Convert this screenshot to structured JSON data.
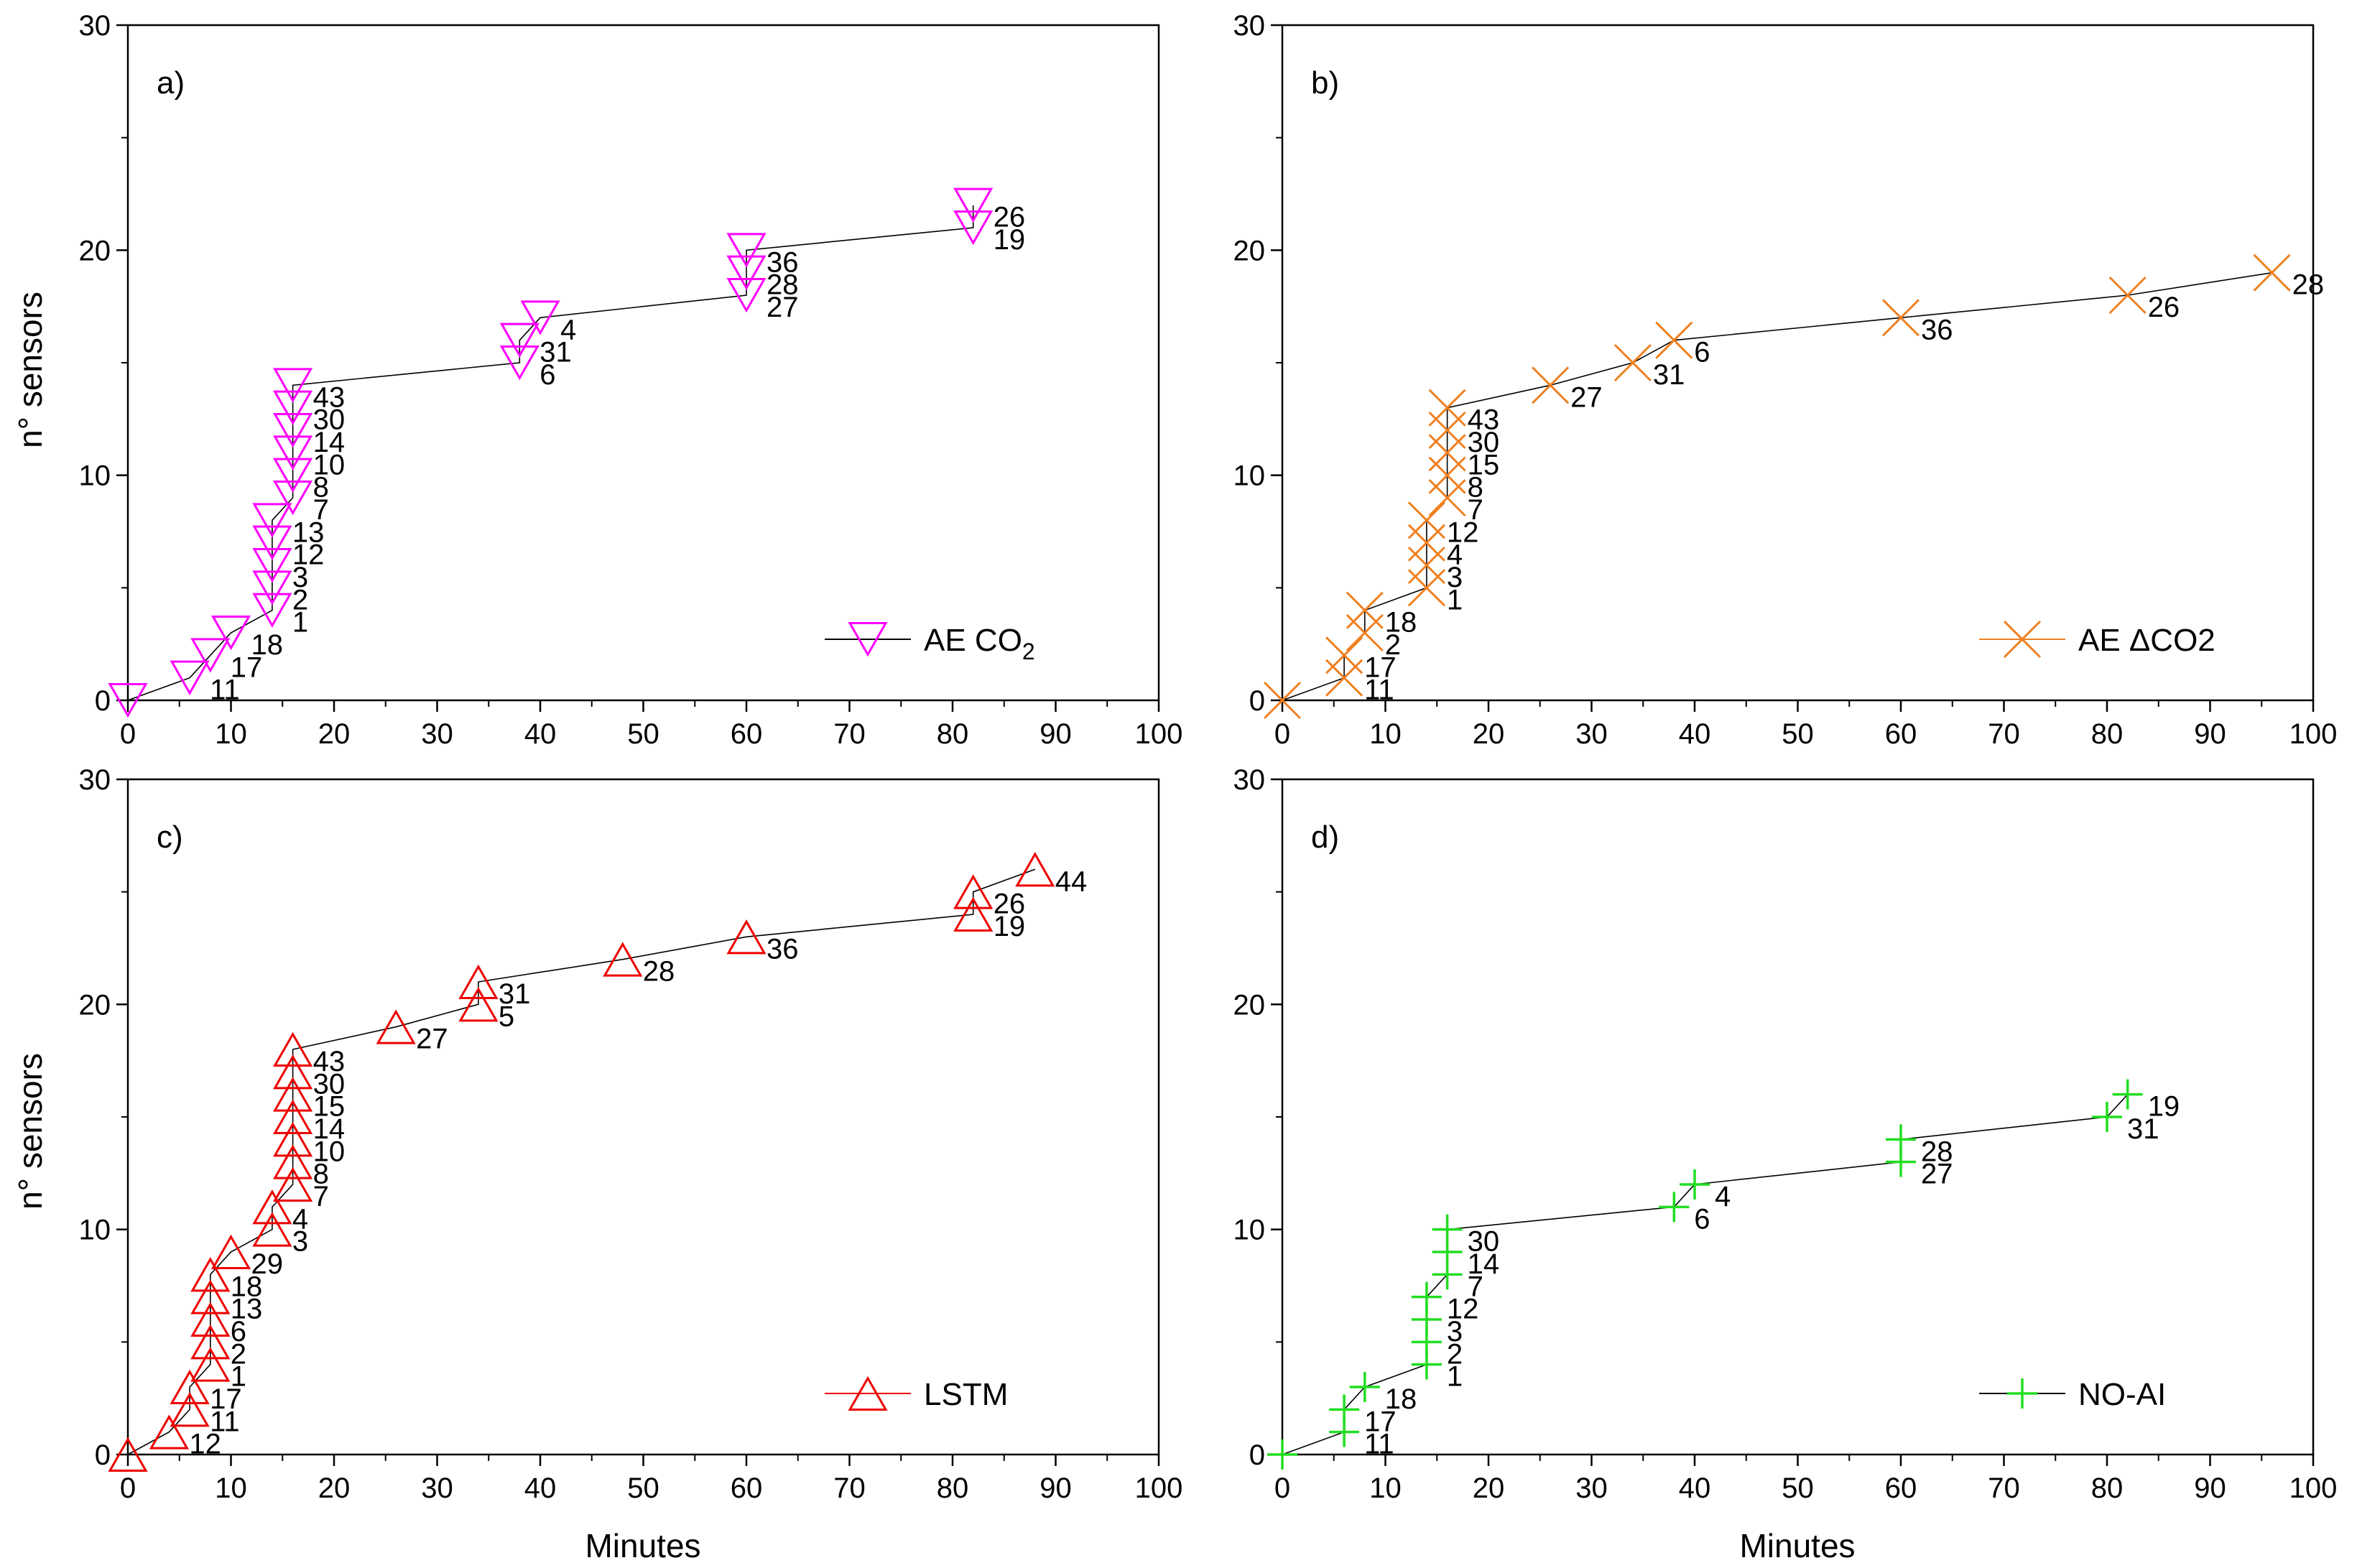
{
  "figure": {
    "x_axis_label": "Minutes",
    "y_axis_label": "n° sensors"
  },
  "chart_data": [
    {
      "panel": "a)",
      "type": "scatter",
      "marker": "triangle-down",
      "color": "#ff00ff",
      "legend": {
        "label": "AE CO",
        "subscript": "2"
      },
      "xlim": [
        0,
        100
      ],
      "ylim": [
        0,
        30
      ],
      "xticks": [
        0,
        10,
        20,
        30,
        40,
        50,
        60,
        70,
        80,
        90,
        100
      ],
      "yticks": [
        0,
        10,
        20,
        30
      ],
      "xlabel": "",
      "ylabel": "n° sensors",
      "points": [
        {
          "x": 0,
          "y": 0,
          "label": ""
        },
        {
          "x": 6,
          "y": 1,
          "label": "11"
        },
        {
          "x": 8,
          "y": 2,
          "label": "17"
        },
        {
          "x": 10,
          "y": 3,
          "label": "18"
        },
        {
          "x": 14,
          "y": 4,
          "label": "1"
        },
        {
          "x": 14,
          "y": 5,
          "label": "2"
        },
        {
          "x": 14,
          "y": 6,
          "label": "3"
        },
        {
          "x": 14,
          "y": 7,
          "label": "12"
        },
        {
          "x": 14,
          "y": 8,
          "label": "13"
        },
        {
          "x": 16,
          "y": 9,
          "label": "7"
        },
        {
          "x": 16,
          "y": 10,
          "label": "8"
        },
        {
          "x": 16,
          "y": 11,
          "label": "10"
        },
        {
          "x": 16,
          "y": 12,
          "label": "14"
        },
        {
          "x": 16,
          "y": 13,
          "label": "30"
        },
        {
          "x": 16,
          "y": 14,
          "label": "43"
        },
        {
          "x": 38,
          "y": 15,
          "label": "6"
        },
        {
          "x": 38,
          "y": 16,
          "label": "31"
        },
        {
          "x": 40,
          "y": 17,
          "label": "4"
        },
        {
          "x": 60,
          "y": 18,
          "label": "27"
        },
        {
          "x": 60,
          "y": 19,
          "label": "28"
        },
        {
          "x": 60,
          "y": 20,
          "label": "36"
        },
        {
          "x": 82,
          "y": 21,
          "label": "19"
        },
        {
          "x": 82,
          "y": 22,
          "label": "26"
        }
      ]
    },
    {
      "panel": "b)",
      "type": "scatter",
      "marker": "x",
      "color": "#f08020",
      "legend": {
        "label": "AE ΔCO2",
        "subscript": ""
      },
      "xlim": [
        0,
        100
      ],
      "ylim": [
        0,
        30
      ],
      "xticks": [
        0,
        10,
        20,
        30,
        40,
        50,
        60,
        70,
        80,
        90,
        100
      ],
      "yticks": [
        0,
        10,
        20,
        30
      ],
      "xlabel": "",
      "ylabel": "",
      "points": [
        {
          "x": 0,
          "y": 0,
          "label": ""
        },
        {
          "x": 6,
          "y": 1,
          "label": "11"
        },
        {
          "x": 6,
          "y": 2,
          "label": "17"
        },
        {
          "x": 8,
          "y": 3,
          "label": "2"
        },
        {
          "x": 8,
          "y": 4,
          "label": "18"
        },
        {
          "x": 14,
          "y": 5,
          "label": "1"
        },
        {
          "x": 14,
          "y": 6,
          "label": "3"
        },
        {
          "x": 14,
          "y": 7,
          "label": "4"
        },
        {
          "x": 14,
          "y": 8,
          "label": "12"
        },
        {
          "x": 16,
          "y": 9,
          "label": "7"
        },
        {
          "x": 16,
          "y": 10,
          "label": "8"
        },
        {
          "x": 16,
          "y": 11,
          "label": "15"
        },
        {
          "x": 16,
          "y": 12,
          "label": "30"
        },
        {
          "x": 16,
          "y": 13,
          "label": "43"
        },
        {
          "x": 26,
          "y": 14,
          "label": "27"
        },
        {
          "x": 34,
          "y": 15,
          "label": "31"
        },
        {
          "x": 38,
          "y": 16,
          "label": "6"
        },
        {
          "x": 60,
          "y": 17,
          "label": "36"
        },
        {
          "x": 82,
          "y": 18,
          "label": "26"
        },
        {
          "x": 96,
          "y": 19,
          "label": "28"
        }
      ]
    },
    {
      "panel": "c)",
      "type": "scatter",
      "marker": "triangle-up",
      "color": "#ee0000",
      "legend": {
        "label": "LSTM",
        "subscript": ""
      },
      "xlim": [
        0,
        100
      ],
      "ylim": [
        0,
        30
      ],
      "xticks": [
        0,
        10,
        20,
        30,
        40,
        50,
        60,
        70,
        80,
        90,
        100
      ],
      "yticks": [
        0,
        10,
        20,
        30
      ],
      "xlabel": "Minutes",
      "ylabel": "n° sensors",
      "points": [
        {
          "x": 0,
          "y": 0,
          "label": ""
        },
        {
          "x": 4,
          "y": 1,
          "label": "12"
        },
        {
          "x": 6,
          "y": 2,
          "label": "11"
        },
        {
          "x": 6,
          "y": 3,
          "label": "17"
        },
        {
          "x": 8,
          "y": 4,
          "label": "1"
        },
        {
          "x": 8,
          "y": 5,
          "label": "2"
        },
        {
          "x": 8,
          "y": 6,
          "label": "6"
        },
        {
          "x": 8,
          "y": 7,
          "label": "13"
        },
        {
          "x": 8,
          "y": 8,
          "label": "18"
        },
        {
          "x": 10,
          "y": 9,
          "label": "29"
        },
        {
          "x": 14,
          "y": 10,
          "label": "3"
        },
        {
          "x": 14,
          "y": 11,
          "label": "4"
        },
        {
          "x": 16,
          "y": 12,
          "label": "7"
        },
        {
          "x": 16,
          "y": 13,
          "label": "8"
        },
        {
          "x": 16,
          "y": 14,
          "label": "10"
        },
        {
          "x": 16,
          "y": 15,
          "label": "14"
        },
        {
          "x": 16,
          "y": 16,
          "label": "15"
        },
        {
          "x": 16,
          "y": 17,
          "label": "30"
        },
        {
          "x": 16,
          "y": 18,
          "label": "43"
        },
        {
          "x": 26,
          "y": 19,
          "label": "27"
        },
        {
          "x": 34,
          "y": 20,
          "label": "5"
        },
        {
          "x": 34,
          "y": 21,
          "label": "31"
        },
        {
          "x": 48,
          "y": 22,
          "label": "28"
        },
        {
          "x": 60,
          "y": 23,
          "label": "36"
        },
        {
          "x": 82,
          "y": 24,
          "label": "19"
        },
        {
          "x": 82,
          "y": 25,
          "label": "26"
        },
        {
          "x": 88,
          "y": 26,
          "label": "44"
        }
      ]
    },
    {
      "panel": "d)",
      "type": "scatter",
      "marker": "plus",
      "color": "#22dd22",
      "legend": {
        "label": "NO-AI",
        "subscript": ""
      },
      "xlim": [
        0,
        100
      ],
      "ylim": [
        0,
        30
      ],
      "xticks": [
        0,
        10,
        20,
        30,
        40,
        50,
        60,
        70,
        80,
        90,
        100
      ],
      "yticks": [
        0,
        10,
        20,
        30
      ],
      "xlabel": "Minutes",
      "ylabel": "",
      "points": [
        {
          "x": 0,
          "y": 0,
          "label": ""
        },
        {
          "x": 6,
          "y": 1,
          "label": "11"
        },
        {
          "x": 6,
          "y": 2,
          "label": "17"
        },
        {
          "x": 8,
          "y": 3,
          "label": "18"
        },
        {
          "x": 14,
          "y": 4,
          "label": "1"
        },
        {
          "x": 14,
          "y": 5,
          "label": "2"
        },
        {
          "x": 14,
          "y": 6,
          "label": "3"
        },
        {
          "x": 14,
          "y": 7,
          "label": "12"
        },
        {
          "x": 16,
          "y": 8,
          "label": "7"
        },
        {
          "x": 16,
          "y": 9,
          "label": "14"
        },
        {
          "x": 16,
          "y": 10,
          "label": "30"
        },
        {
          "x": 38,
          "y": 11,
          "label": "6"
        },
        {
          "x": 40,
          "y": 12,
          "label": "4"
        },
        {
          "x": 60,
          "y": 13,
          "label": "27"
        },
        {
          "x": 60,
          "y": 14,
          "label": "28"
        },
        {
          "x": 80,
          "y": 15,
          "label": "31"
        },
        {
          "x": 82,
          "y": 16,
          "label": "19"
        }
      ]
    }
  ]
}
